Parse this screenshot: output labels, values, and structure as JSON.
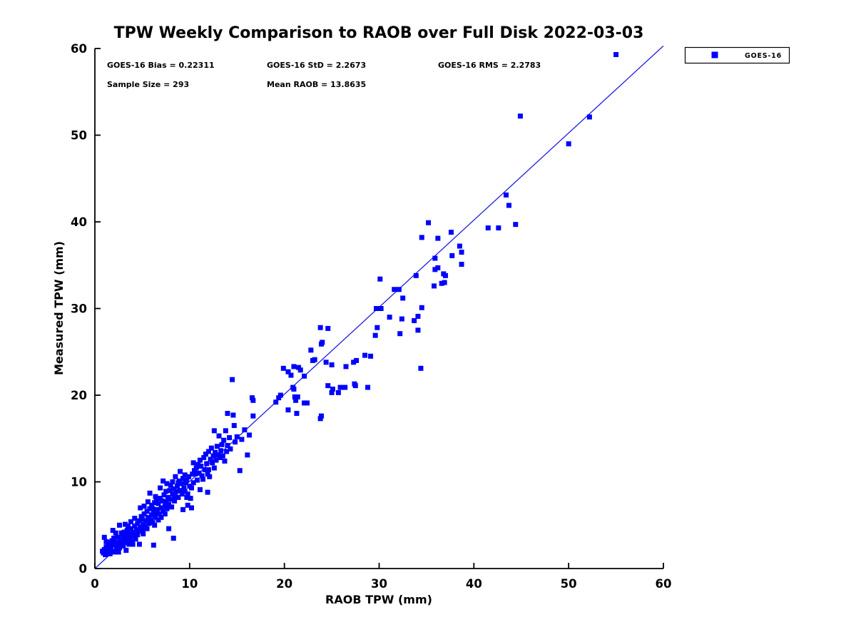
{
  "chart_data": {
    "type": "scatter",
    "title": "TPW Weekly Comparison to RAOB over Full Disk 2022-03-03",
    "xlabel": "RAOB TPW (mm)",
    "ylabel": "Measured TPW (mm)",
    "xlim": [
      0,
      60
    ],
    "ylim": [
      0,
      60
    ],
    "xticks": [
      0,
      10,
      20,
      30,
      40,
      50,
      60
    ],
    "yticks": [
      0,
      10,
      20,
      30,
      40,
      50,
      60
    ],
    "grid": false,
    "legend_position": "outside-upper-right",
    "annotations": {
      "bias": "GOES-16 Bias = 0.22311",
      "std": "GOES-16 StD = 2.2673",
      "rms": "GOES-16 RMS = 2.2783",
      "sample_size": "Sample Size = 293",
      "mean_raob": "Mean RAOB = 13.8635"
    },
    "legend": {
      "entries": [
        {
          "label": "GOES-16",
          "marker": "square",
          "color": "#0000ff"
        }
      ]
    },
    "reference_line": {
      "from": [
        0,
        0
      ],
      "to": [
        60,
        60.3
      ],
      "color": "#1d1de0"
    },
    "marker_color": "#0000ff",
    "marker_size_px": 7,
    "series": [
      {
        "name": "GOES-16",
        "points": [
          [
            0.9,
            1.8
          ],
          [
            1.0,
            2.2
          ],
          [
            1.1,
            1.6
          ],
          [
            1.2,
            2.5
          ],
          [
            1.3,
            1.9
          ],
          [
            1.4,
            2.8
          ],
          [
            1.5,
            2.1
          ],
          [
            1.5,
            3.0
          ],
          [
            1.6,
            1.7
          ],
          [
            1.7,
            2.4
          ],
          [
            1.8,
            3.2
          ],
          [
            1.9,
            2.0
          ],
          [
            2.0,
            2.7
          ],
          [
            2.0,
            3.5
          ],
          [
            2.1,
            1.9
          ],
          [
            2.2,
            3.0
          ],
          [
            2.3,
            2.3
          ],
          [
            2.4,
            3.6
          ],
          [
            2.5,
            2.8
          ],
          [
            1.0,
            3.6
          ],
          [
            1.9,
            4.4
          ],
          [
            2.6,
            5.0
          ],
          [
            1.2,
            3.1
          ],
          [
            2.2,
            4.1
          ],
          [
            0.8,
            2.0
          ],
          [
            2.5,
            1.9
          ],
          [
            2.6,
            2.4
          ],
          [
            2.7,
            3.3
          ],
          [
            2.8,
            2.8
          ],
          [
            2.9,
            3.9
          ],
          [
            3.0,
            2.6
          ],
          [
            3.0,
            3.5
          ],
          [
            3.1,
            4.2
          ],
          [
            3.2,
            3.0
          ],
          [
            3.3,
            2.1
          ],
          [
            3.3,
            3.7
          ],
          [
            3.4,
            4.4
          ],
          [
            3.5,
            3.2
          ],
          [
            3.6,
            2.8
          ],
          [
            3.6,
            4.0
          ],
          [
            3.7,
            3.5
          ],
          [
            3.8,
            4.6
          ],
          [
            3.9,
            3.1
          ],
          [
            4.0,
            2.8
          ],
          [
            4.0,
            4.2
          ],
          [
            4.1,
            3.7
          ],
          [
            4.2,
            4.9
          ],
          [
            4.3,
            3.4
          ],
          [
            4.4,
            4.5
          ],
          [
            4.5,
            3.9
          ],
          [
            4.5,
            5.2
          ],
          [
            3.8,
            5.4
          ],
          [
            4.2,
            5.8
          ],
          [
            3.2,
            5.1
          ],
          [
            4.7,
            2.8
          ],
          [
            3.5,
            4.9
          ],
          [
            4.6,
            4.3
          ],
          [
            4.7,
            5.5
          ],
          [
            4.8,
            4.8
          ],
          [
            4.9,
            6.0
          ],
          [
            5.0,
            4.5
          ],
          [
            5.0,
            5.7
          ],
          [
            5.1,
            5.1
          ],
          [
            5.2,
            6.3
          ],
          [
            5.3,
            4.9
          ],
          [
            5.4,
            5.5
          ],
          [
            5.5,
            6.6
          ],
          [
            5.5,
            4.6
          ],
          [
            5.6,
            5.9
          ],
          [
            5.7,
            5.2
          ],
          [
            5.8,
            6.9
          ],
          [
            5.8,
            8.7
          ],
          [
            5.9,
            5.6
          ],
          [
            6.0,
            6.2
          ],
          [
            6.0,
            7.3
          ],
          [
            6.1,
            5.3
          ],
          [
            6.2,
            2.7
          ],
          [
            6.2,
            6.7
          ],
          [
            6.3,
            7.6
          ],
          [
            6.4,
            5.9
          ],
          [
            6.5,
            6.4
          ],
          [
            6.5,
            7.9
          ],
          [
            6.1,
            6.9
          ],
          [
            5.2,
            7.2
          ],
          [
            4.8,
            7.0
          ],
          [
            6.4,
            8.3
          ],
          [
            5.6,
            7.7
          ],
          [
            6.3,
            5.0
          ],
          [
            6.6,
            6.8
          ],
          [
            6.7,
            7.5
          ],
          [
            6.8,
            6.3
          ],
          [
            6.9,
            8.1
          ],
          [
            6.9,
            9.3
          ],
          [
            7.0,
            7.0
          ],
          [
            7.1,
            7.8
          ],
          [
            7.2,
            6.6
          ],
          [
            7.2,
            10.1
          ],
          [
            7.3,
            8.5
          ],
          [
            7.4,
            7.2
          ],
          [
            7.5,
            8.9
          ],
          [
            7.5,
            7.7
          ],
          [
            7.6,
            6.9
          ],
          [
            7.7,
            8.2
          ],
          [
            7.8,
            4.6
          ],
          [
            7.8,
            7.4
          ],
          [
            7.9,
            9.0
          ],
          [
            8.0,
            8.0
          ],
          [
            8.0,
            9.6
          ],
          [
            8.1,
            7.1
          ],
          [
            8.2,
            8.6
          ],
          [
            8.3,
            3.5
          ],
          [
            8.3,
            9.2
          ],
          [
            8.4,
            7.8
          ],
          [
            8.5,
            8.3
          ],
          [
            8.5,
            10.6
          ],
          [
            7.0,
            5.9
          ],
          [
            8.2,
            10.0
          ],
          [
            7.6,
            9.8
          ],
          [
            8.6,
            8.9
          ],
          [
            8.7,
            9.5
          ],
          [
            8.8,
            8.2
          ],
          [
            8.9,
            10.1
          ],
          [
            9.0,
            9.0
          ],
          [
            9.0,
            11.2
          ],
          [
            9.1,
            9.8
          ],
          [
            9.2,
            8.6
          ],
          [
            9.3,
            6.8
          ],
          [
            9.3,
            10.4
          ],
          [
            9.4,
            9.3
          ],
          [
            9.5,
            10.8
          ],
          [
            9.6,
            9.9
          ],
          [
            9.7,
            8.2
          ],
          [
            9.7,
            10.2
          ],
          [
            9.8,
            7.3
          ],
          [
            9.8,
            8.6
          ],
          [
            9.9,
            10.6
          ],
          [
            10.0,
            9.5
          ],
          [
            10.1,
            8.1
          ],
          [
            10.2,
            9.3
          ],
          [
            10.2,
            7.0
          ],
          [
            1.6,
            2.9
          ],
          [
            2.8,
            4.1
          ],
          [
            5.1,
            4.0
          ],
          [
            6.7,
            5.6
          ],
          [
            7.4,
            6.3
          ],
          [
            8.8,
            9.9
          ],
          [
            9.5,
            8.9
          ],
          [
            10.8,
            11.9
          ],
          [
            13.7,
            12.4
          ],
          [
            15.8,
            16.0
          ],
          [
            10.3,
            10.9
          ],
          [
            10.4,
            9.9
          ],
          [
            10.4,
            12.2
          ],
          [
            10.5,
            11.3
          ],
          [
            10.6,
            10.9
          ],
          [
            10.7,
            11.6
          ],
          [
            10.8,
            10.2
          ],
          [
            10.9,
            12.0
          ],
          [
            11.0,
            11.0
          ],
          [
            11.1,
            9.1
          ],
          [
            11.1,
            12.5
          ],
          [
            11.2,
            11.8
          ],
          [
            11.3,
            10.7
          ],
          [
            11.4,
            10.3
          ],
          [
            11.5,
            12.8
          ],
          [
            11.6,
            11.4
          ],
          [
            11.7,
            13.2
          ],
          [
            11.8,
            12.1
          ],
          [
            11.9,
            10.9
          ],
          [
            11.9,
            8.8
          ],
          [
            12.0,
            11.4
          ],
          [
            12.0,
            13.5
          ],
          [
            12.1,
            10.6
          ],
          [
            12.2,
            12.6
          ],
          [
            12.3,
            13.9
          ],
          [
            12.4,
            12.2
          ],
          [
            12.5,
            13.0
          ],
          [
            12.6,
            11.6
          ],
          [
            12.6,
            15.9
          ],
          [
            12.7,
            13.4
          ],
          [
            12.8,
            12.5
          ],
          [
            12.9,
            14.1
          ],
          [
            13.0,
            13.1
          ],
          [
            13.1,
            15.3
          ],
          [
            13.2,
            12.8
          ],
          [
            13.3,
            13.6
          ],
          [
            13.4,
            14.3
          ],
          [
            13.5,
            13.0
          ],
          [
            13.6,
            14.8
          ],
          [
            13.8,
            15.9
          ],
          [
            13.9,
            13.5
          ],
          [
            14.0,
            17.9
          ],
          [
            14.0,
            14.2
          ],
          [
            14.2,
            15.1
          ],
          [
            14.3,
            13.8
          ],
          [
            14.5,
            21.8
          ],
          [
            14.6,
            17.7
          ],
          [
            14.7,
            16.5
          ],
          [
            14.8,
            14.6
          ],
          [
            15.0,
            15.2
          ],
          [
            15.3,
            11.3
          ],
          [
            15.5,
            14.9
          ],
          [
            16.1,
            13.1
          ],
          [
            16.3,
            15.4
          ],
          [
            16.6,
            19.7
          ],
          [
            16.7,
            17.6
          ],
          [
            16.7,
            19.4
          ],
          [
            19.1,
            19.2
          ],
          [
            19.4,
            19.7
          ],
          [
            19.6,
            20.0
          ],
          [
            19.9,
            23.1
          ],
          [
            20.4,
            22.7
          ],
          [
            20.4,
            18.3
          ],
          [
            20.7,
            22.3
          ],
          [
            20.9,
            20.9
          ],
          [
            21.0,
            23.3
          ],
          [
            21.0,
            20.7
          ],
          [
            21.1,
            19.8
          ],
          [
            21.2,
            19.4
          ],
          [
            21.3,
            17.9
          ],
          [
            21.4,
            19.8
          ],
          [
            21.5,
            23.2
          ],
          [
            21.7,
            22.9
          ],
          [
            22.1,
            22.2
          ],
          [
            22.1,
            19.1
          ],
          [
            22.4,
            19.1
          ],
          [
            22.8,
            25.2
          ],
          [
            23.0,
            24.0
          ],
          [
            23.2,
            24.1
          ],
          [
            23.8,
            27.8
          ],
          [
            23.8,
            17.3
          ],
          [
            23.9,
            25.9
          ],
          [
            23.9,
            17.6
          ],
          [
            24.0,
            26.1
          ],
          [
            24.4,
            23.8
          ],
          [
            24.6,
            27.7
          ],
          [
            24.6,
            21.1
          ],
          [
            25.0,
            23.5
          ],
          [
            25.0,
            20.3
          ],
          [
            25.1,
            20.7
          ],
          [
            25.7,
            20.3
          ],
          [
            25.9,
            20.9
          ],
          [
            26.4,
            20.9
          ],
          [
            26.5,
            23.3
          ],
          [
            27.3,
            23.8
          ],
          [
            27.4,
            21.3
          ],
          [
            27.5,
            21.1
          ],
          [
            27.6,
            24.0
          ],
          [
            28.5,
            24.6
          ],
          [
            28.8,
            20.9
          ],
          [
            29.1,
            24.5
          ],
          [
            29.6,
            26.9
          ],
          [
            29.7,
            30.0
          ],
          [
            29.8,
            27.8
          ],
          [
            30.1,
            33.4
          ],
          [
            30.2,
            30.0
          ],
          [
            31.1,
            29.0
          ],
          [
            31.6,
            32.2
          ],
          [
            32.1,
            32.2
          ],
          [
            32.2,
            27.1
          ],
          [
            32.4,
            28.8
          ],
          [
            32.5,
            31.2
          ],
          [
            33.7,
            28.6
          ],
          [
            33.9,
            33.8
          ],
          [
            34.1,
            29.1
          ],
          [
            34.1,
            27.5
          ],
          [
            34.4,
            23.1
          ],
          [
            34.5,
            30.1
          ],
          [
            34.5,
            38.2
          ],
          [
            35.2,
            39.9
          ],
          [
            35.8,
            32.6
          ],
          [
            35.9,
            35.8
          ],
          [
            35.9,
            34.5
          ],
          [
            36.2,
            38.1
          ],
          [
            36.2,
            34.7
          ],
          [
            36.6,
            32.9
          ],
          [
            36.8,
            34.0
          ],
          [
            37.0,
            33.8
          ],
          [
            36.9,
            33.0
          ],
          [
            37.6,
            38.8
          ],
          [
            37.7,
            36.1
          ],
          [
            38.5,
            37.2
          ],
          [
            38.7,
            36.5
          ],
          [
            38.7,
            35.1
          ],
          [
            41.5,
            39.3
          ],
          [
            42.6,
            39.3
          ],
          [
            43.4,
            43.1
          ],
          [
            43.7,
            41.9
          ],
          [
            44.4,
            39.7
          ],
          [
            44.9,
            52.2
          ],
          [
            50.0,
            49.0
          ],
          [
            52.2,
            52.1
          ],
          [
            55.0,
            59.3
          ]
        ]
      }
    ]
  }
}
